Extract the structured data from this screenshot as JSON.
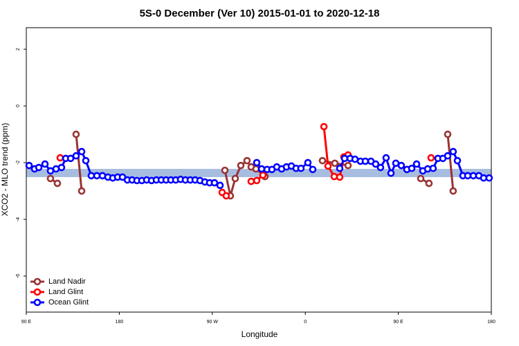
{
  "chart_data": {
    "type": "line",
    "title": "5S-0 December (Ver 10)   2015-01-01 to 2020-12-18",
    "x_label": "Longitude",
    "y_label": "XCO2 - MLO trend (ppm)",
    "xlim": [
      90,
      540
    ],
    "xticks": [
      {
        "value": 90,
        "label": "90 E"
      },
      180,
      {
        "value": 270,
        "label": "90 W"
      },
      {
        "value": 360,
        "label": "0"
      },
      {
        "value": 450,
        "label": "90 E"
      },
      {
        "value": 540,
        "label": "180"
      }
    ],
    "ylim": [
      -7.27,
      2.76
    ],
    "yticks": [
      -6,
      -4,
      -2,
      0,
      2
    ],
    "legend": "bottom-left",
    "band": {
      "range": [
        -2.51,
        -2.22
      ],
      "color": "#a7bde0"
    },
    "series": [
      {
        "name": "Land Nadir",
        "color": "#993333",
        "x": [
          113.4,
          120.1,
          null,
          138.2,
          143.6,
          null,
          282.2,
          287.5,
          292.2,
          297.6,
          303.6,
          307.6,
          312.3,
          321.0,
          null,
          376.6,
          388.6,
          401.4,
          null,
          471.7,
          479.7,
          null,
          497.8,
          503.1
        ],
        "values": [
          -2.56,
          -2.73,
          null,
          -1.0,
          -3.0,
          null,
          -2.27,
          -3.17,
          -2.56,
          -2.1,
          -1.93,
          -2.15,
          -2.22,
          -2.49,
          null,
          -1.93,
          -2.02,
          -2.1,
          null,
          -2.56,
          -2.73,
          null,
          -1.0,
          -3.0
        ]
      },
      {
        "name": "Land Glint",
        "color": "#ff0000",
        "x": [
          122.8,
          null,
          279.5,
          283.5,
          null,
          307.6,
          313.0,
          319.0,
          null,
          378.0,
          382.0,
          388.0,
          393.3,
          397.3,
          401.4,
          null,
          481.7
        ],
        "values": [
          -1.83,
          null,
          -3.05,
          -3.17,
          null,
          -2.66,
          -2.63,
          -2.44,
          null,
          -0.73,
          -2.12,
          -2.49,
          -2.51,
          -1.8,
          -1.73,
          null,
          -1.83
        ]
      },
      {
        "name": "Ocean Glint",
        "color": "#0000ff",
        "x": [
          92.7,
          98.0,
          102.1,
          108.1,
          113.4,
          118.8,
          124.1,
          128.2,
          132.9,
          138.2,
          143.6,
          147.6,
          152.9,
          158.3,
          163.7,
          169.0,
          173.7,
          178.4,
          183.1,
          187.8,
          192.4,
          197.1,
          201.8,
          206.5,
          211.2,
          215.9,
          220.6,
          225.3,
          229.9,
          234.6,
          239.3,
          244.0,
          248.7,
          253.4,
          258.1,
          262.8,
          267.4,
          272.1,
          277.5,
          null,
          313.0,
          317.7,
          323.0,
          327.7,
          332.4,
          337.1,
          341.8,
          346.5,
          351.1,
          355.8,
          362.5,
          367.2,
          null,
          393.3,
          398.0,
          403.4,
          408.1,
          413.4,
          418.1,
          423.5,
          428.1,
          432.8,
          438.2,
          442.9,
          447.6,
          452.9,
          458.3,
          463.0,
          467.7,
          473.7,
          478.4,
          483.7,
          488.4,
          493.1,
          497.8,
          503.1,
          507.2,
          512.5,
          517.2,
          522.6,
          527.9,
          532.6,
          537.9
        ],
        "values": [
          -2.1,
          -2.22,
          -2.17,
          -2.05,
          -2.29,
          -2.22,
          -2.17,
          -1.85,
          -1.85,
          -1.76,
          -1.61,
          -1.93,
          -2.46,
          -2.46,
          -2.46,
          -2.51,
          -2.54,
          -2.51,
          -2.51,
          -2.61,
          -2.61,
          -2.63,
          -2.63,
          -2.61,
          -2.63,
          -2.61,
          -2.61,
          -2.61,
          -2.61,
          -2.61,
          -2.59,
          -2.61,
          -2.61,
          -2.61,
          -2.63,
          -2.68,
          -2.71,
          -2.71,
          -2.8,
          null,
          -2.0,
          -2.22,
          -2.24,
          -2.24,
          -2.15,
          -2.22,
          -2.15,
          -2.12,
          -2.2,
          -2.2,
          -2.0,
          -2.24,
          null,
          -2.2,
          -1.85,
          -1.85,
          -1.88,
          -1.95,
          -1.95,
          -1.95,
          -2.05,
          -2.17,
          -1.83,
          -2.37,
          -2.02,
          -2.1,
          -2.24,
          -2.2,
          -2.05,
          -2.29,
          -2.22,
          -2.2,
          -1.85,
          -1.85,
          -1.76,
          -1.61,
          -1.93,
          -2.46,
          -2.46,
          -2.46,
          -2.46,
          -2.54,
          -2.54
        ]
      }
    ]
  }
}
